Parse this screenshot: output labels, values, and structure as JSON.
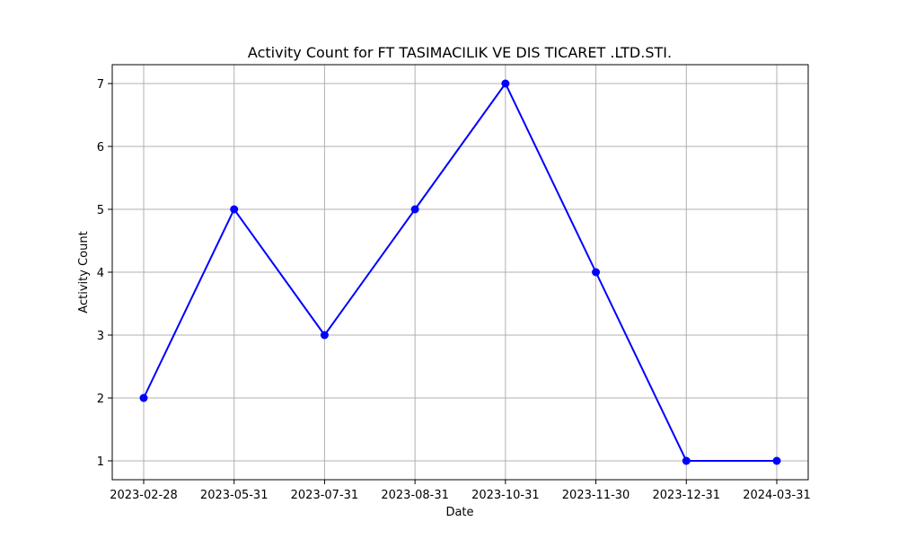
{
  "chart_data": {
    "type": "line",
    "title": "Activity Count for FT TASIMACILIK VE DIS TICARET .LTD.STI.",
    "xlabel": "Date",
    "ylabel": "Activity Count",
    "categories": [
      "2023-02-28",
      "2023-05-31",
      "2023-07-31",
      "2023-08-31",
      "2023-10-31",
      "2023-11-30",
      "2023-12-31",
      "2024-03-31"
    ],
    "values": [
      2,
      5,
      3,
      5,
      7,
      4,
      1,
      1
    ],
    "yticks": [
      1,
      2,
      3,
      4,
      5,
      6,
      7
    ],
    "ylim": [
      0.7,
      7.3
    ],
    "grid": true,
    "line_color": "#0000ff",
    "marker": "circle"
  }
}
